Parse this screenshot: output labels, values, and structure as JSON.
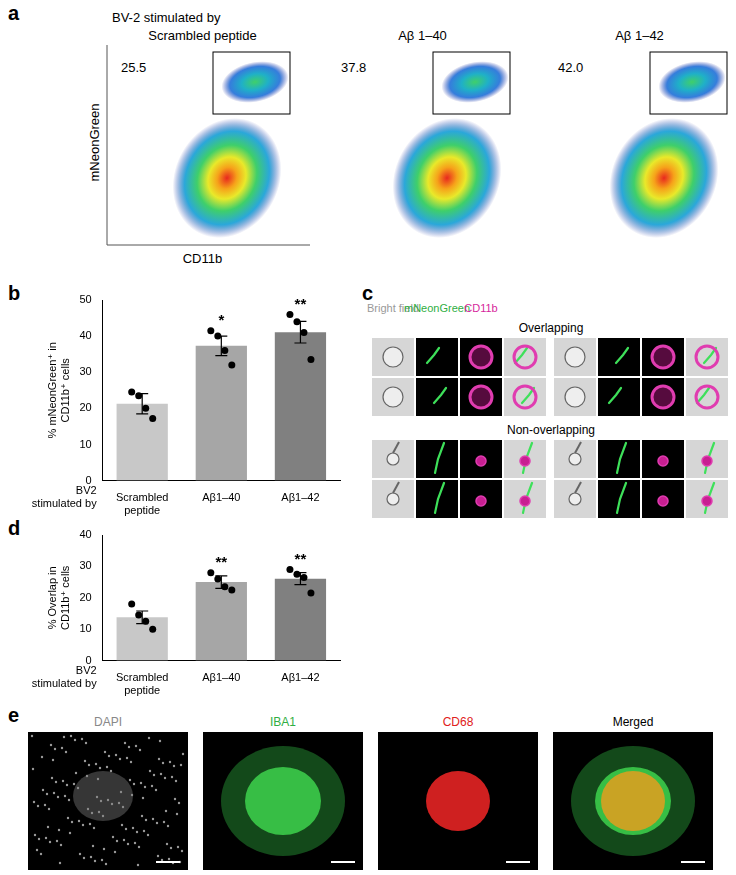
{
  "figure": {
    "a": {
      "panel": "a",
      "title": "BV-2 stimulated by",
      "xlabel": "CD11b",
      "ylabel": "mNeonGreen",
      "plots": [
        {
          "label": "Scrambled peptide",
          "gate_percent": 25.5
        },
        {
          "label": "Aβ 1–40",
          "gate_percent": 37.8
        },
        {
          "label": "Aβ 1–42",
          "gate_percent": 42.0
        }
      ]
    },
    "c": {
      "panel": "c",
      "columns": [
        "Bright field",
        "mNeonGreen",
        "CD11b"
      ],
      "groups": [
        "Overlapping",
        "Non-overlapping"
      ]
    },
    "e": {
      "panel": "e",
      "columns": [
        "DAPI",
        "IBA1",
        "CD68",
        "Merged"
      ]
    }
  },
  "chart_data": [
    {
      "panel": "b",
      "type": "bar",
      "ylabel": "% mNeonGreen⁺ in CD11b⁺ cells",
      "xlabel": "BV2 stimulated by",
      "categories": [
        "Scrambled peptide",
        "Aβ1–40",
        "Aβ1–42"
      ],
      "values": [
        21.3,
        37.3,
        41.1
      ],
      "errors": [
        2.8,
        2.7,
        3.0
      ],
      "points": [
        [
          24.5,
          23.5,
          20,
          17.2
        ],
        [
          41.5,
          40,
          36,
          32
        ],
        [
          46,
          44,
          41,
          33.5
        ]
      ],
      "colors": [
        "#c8c8c8",
        "#a6a6a6",
        "#808080"
      ],
      "annotations": [
        null,
        "*",
        "**"
      ],
      "ylim": [
        0,
        50
      ],
      "yticks": [
        0,
        10,
        20,
        30,
        40,
        50
      ]
    },
    {
      "panel": "d",
      "type": "bar",
      "ylabel": "% Overlap in CD11b⁺ cells",
      "xlabel": "BV2 stimulated by",
      "categories": [
        "Scrambled peptide",
        "Aβ1–40",
        "Aβ1–42"
      ],
      "values": [
        13.8,
        25.0,
        26.1
      ],
      "errors": [
        2.0,
        2.0,
        1.9
      ],
      "points": [
        [
          18,
          14.5,
          12.5,
          10
        ],
        [
          28,
          26,
          23.5,
          22.5
        ],
        [
          29,
          27.5,
          26.5,
          21.5
        ]
      ],
      "colors": [
        "#c8c8c8",
        "#a6a6a6",
        "#808080"
      ],
      "annotations": [
        null,
        "**",
        "**"
      ],
      "ylim": [
        0,
        40
      ],
      "yticks": [
        0,
        10,
        20,
        30,
        40
      ]
    }
  ]
}
